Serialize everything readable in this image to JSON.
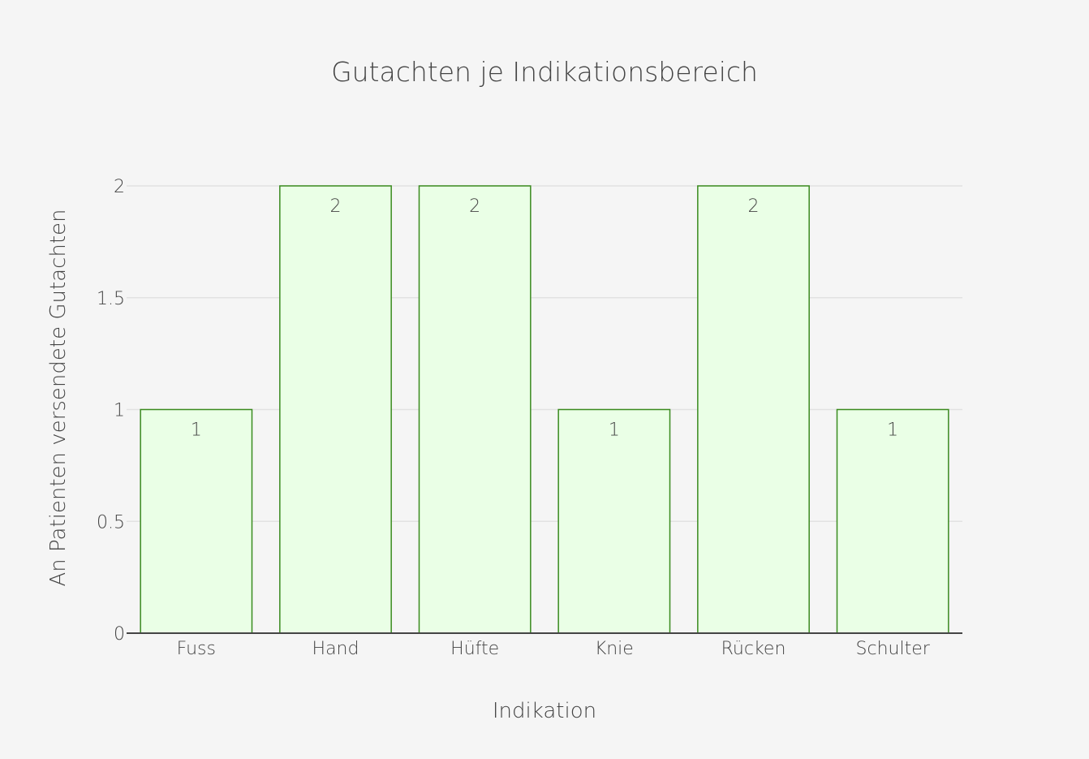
{
  "chart_data": {
    "type": "bar",
    "title": "Gutachten je Indikationsbereich",
    "xlabel": "Indikation",
    "ylabel": "An Patienten versendete Gutachten",
    "categories": [
      "Fuss",
      "Hand",
      "Hüfte",
      "Knie",
      "Rücken",
      "Schulter"
    ],
    "values": [
      1,
      2,
      2,
      1,
      2,
      1
    ],
    "data_labels": [
      "1",
      "2",
      "2",
      "1",
      "2",
      "1"
    ],
    "ylim": [
      0,
      2
    ],
    "yticks": [
      0,
      0.5,
      1,
      1.5,
      2
    ],
    "ytick_labels": [
      "0",
      "0.5",
      "1",
      "1.5",
      "2"
    ],
    "grid": true,
    "colors": {
      "bar_fill": "#eaffe6",
      "bar_stroke": "#3a8a1f",
      "background": "#f5f5f5",
      "gridline": "#e2e2e2",
      "text": "#444444"
    }
  }
}
